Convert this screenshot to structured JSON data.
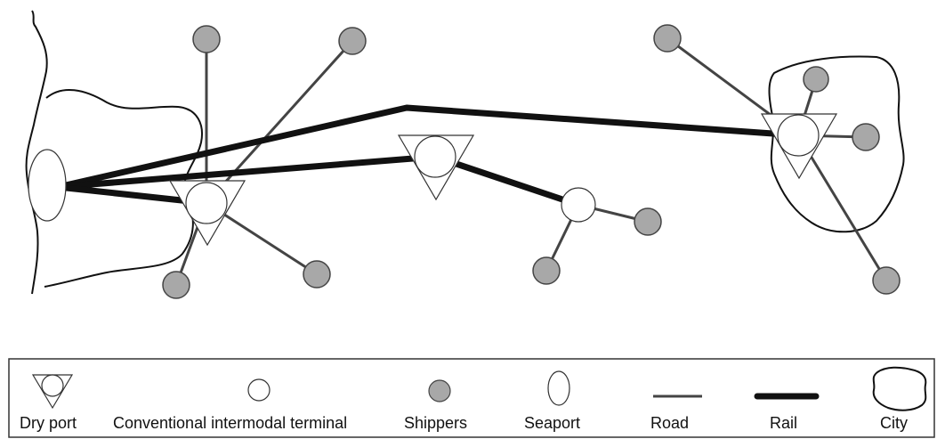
{
  "colors": {
    "road": "#444444",
    "rail": "#111111",
    "shipper_fill": "#a8a8a8",
    "terminal_fill": "#ffffff",
    "outline": "#333333"
  },
  "legend": {
    "dry_port": "Dry port",
    "conventional_terminal": "Conventional intermodal terminal",
    "shippers": "Shippers",
    "seaport": "Seaport",
    "road": "Road",
    "rail": "Rail",
    "city": "City"
  },
  "network": {
    "nodes": [
      {
        "id": "seaport",
        "type": "seaport"
      },
      {
        "id": "dryport-west",
        "type": "dry-port"
      },
      {
        "id": "dryport-central",
        "type": "dry-port"
      },
      {
        "id": "dryport-east",
        "type": "dry-port"
      },
      {
        "id": "terminal-conventional",
        "type": "conventional-terminal"
      },
      {
        "id": "shipper-w1",
        "type": "shipper"
      },
      {
        "id": "shipper-w2",
        "type": "shipper"
      },
      {
        "id": "shipper-w3",
        "type": "shipper"
      },
      {
        "id": "shipper-w4",
        "type": "shipper"
      },
      {
        "id": "shipper-c1",
        "type": "shipper"
      },
      {
        "id": "shipper-c2",
        "type": "shipper"
      },
      {
        "id": "shipper-e1",
        "type": "shipper"
      },
      {
        "id": "shipper-e2",
        "type": "shipper"
      },
      {
        "id": "shipper-e3",
        "type": "shipper"
      },
      {
        "id": "shipper-e4",
        "type": "shipper"
      }
    ],
    "rail_links": [
      [
        "seaport",
        "dryport-west"
      ],
      [
        "seaport",
        "dryport-central"
      ],
      [
        "seaport",
        "dryport-east"
      ],
      [
        "dryport-central",
        "terminal-conventional"
      ]
    ],
    "road_links": [
      [
        "dryport-west",
        "shipper-w1"
      ],
      [
        "dryport-west",
        "shipper-w2"
      ],
      [
        "dryport-west",
        "shipper-w3"
      ],
      [
        "dryport-west",
        "shipper-w4"
      ],
      [
        "terminal-conventional",
        "shipper-c1"
      ],
      [
        "terminal-conventional",
        "shipper-c2"
      ],
      [
        "dryport-east",
        "shipper-e1"
      ],
      [
        "dryport-east",
        "shipper-e2"
      ],
      [
        "dryport-east",
        "shipper-e3"
      ],
      [
        "dryport-east",
        "shipper-e4"
      ]
    ]
  }
}
